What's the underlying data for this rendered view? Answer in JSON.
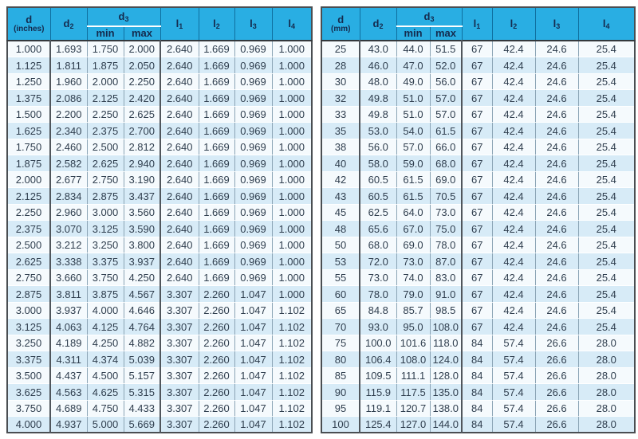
{
  "colors": {
    "header_bg": "#29aee3",
    "header_text": "#152b4e",
    "header_grid": "#0f6f9f",
    "row_light": "#f5fafd",
    "row_blue": "#d7ebf7",
    "body_text": "#2f3e4e",
    "grid_thin": "#8ba4b5",
    "grid_thick": "#4a4e52"
  },
  "inches_table": {
    "headers": {
      "col1_main": "d",
      "col1_unit": "(inches)",
      "d2_base": "d",
      "d2_sub": "2",
      "d3_base": "d",
      "d3_sub": "3",
      "min": "min",
      "max": "max",
      "l1_base": "l",
      "l1_sub": "1",
      "l2_base": "l",
      "l2_sub": "2",
      "l3_base": "l",
      "l3_sub": "3",
      "l4_base": "l",
      "l4_sub": "4"
    },
    "rows": [
      [
        "1.000",
        "1.693",
        "1.750",
        "2.000",
        "2.640",
        "1.669",
        "0.969",
        "1.000"
      ],
      [
        "1.125",
        "1.811",
        "1.875",
        "2.050",
        "2.640",
        "1.669",
        "0.969",
        "1.000"
      ],
      [
        "1.250",
        "1.960",
        "2.000",
        "2.250",
        "2.640",
        "1.669",
        "0.969",
        "1.000"
      ],
      [
        "1.375",
        "2.086",
        "2.125",
        "2.420",
        "2.640",
        "1.669",
        "0.969",
        "1.000"
      ],
      [
        "1.500",
        "2.200",
        "2.250",
        "2.625",
        "2.640",
        "1.669",
        "0.969",
        "1.000"
      ],
      [
        "1.625",
        "2.340",
        "2.375",
        "2.700",
        "2.640",
        "1.669",
        "0.969",
        "1.000"
      ],
      [
        "1.750",
        "2.460",
        "2.500",
        "2.812",
        "2.640",
        "1.669",
        "0.969",
        "1.000"
      ],
      [
        "1.875",
        "2.582",
        "2.625",
        "2.940",
        "2.640",
        "1.669",
        "0.969",
        "1.000"
      ],
      [
        "2.000",
        "2.677",
        "2.750",
        "3.190",
        "2.640",
        "1.669",
        "0.969",
        "1.000"
      ],
      [
        "2.125",
        "2.834",
        "2.875",
        "3.437",
        "2.640",
        "1.669",
        "0.969",
        "1.000"
      ],
      [
        "2.250",
        "2.960",
        "3.000",
        "3.560",
        "2.640",
        "1.669",
        "0.969",
        "1.000"
      ],
      [
        "2.375",
        "3.070",
        "3.125",
        "3.590",
        "2.640",
        "1.669",
        "0.969",
        "1.000"
      ],
      [
        "2.500",
        "3.212",
        "3.250",
        "3.800",
        "2.640",
        "1.669",
        "0.969",
        "1.000"
      ],
      [
        "2.625",
        "3.338",
        "3.375",
        "3.937",
        "2.640",
        "1.669",
        "0.969",
        "1.000"
      ],
      [
        "2.750",
        "3.660",
        "3.750",
        "4.250",
        "2.640",
        "1.669",
        "0.969",
        "1.000"
      ],
      [
        "2.875",
        "3.811",
        "3.875",
        "4.567",
        "3.307",
        "2.260",
        "1.047",
        "1.000"
      ],
      [
        "3.000",
        "3.937",
        "4.000",
        "4.646",
        "3.307",
        "2.260",
        "1.047",
        "1.102"
      ],
      [
        "3.125",
        "4.063",
        "4.125",
        "4.764",
        "3.307",
        "2.260",
        "1.047",
        "1.102"
      ],
      [
        "3.250",
        "4.189",
        "4.250",
        "4.882",
        "3.307",
        "2.260",
        "1.047",
        "1.102"
      ],
      [
        "3.375",
        "4.311",
        "4.374",
        "5.039",
        "3.307",
        "2.260",
        "1.047",
        "1.102"
      ],
      [
        "3.500",
        "4.437",
        "4.500",
        "5.157",
        "3.307",
        "2.260",
        "1.047",
        "1.102"
      ],
      [
        "3.625",
        "4.563",
        "4.625",
        "5.315",
        "3.307",
        "2.260",
        "1.047",
        "1.102"
      ],
      [
        "3.750",
        "4.689",
        "4.750",
        "4.433",
        "3.307",
        "2.260",
        "1.047",
        "1.102"
      ],
      [
        "4.000",
        "4.937",
        "5.000",
        "5.669",
        "3.307",
        "2.260",
        "1.047",
        "1.102"
      ]
    ]
  },
  "mm_table": {
    "headers": {
      "col1_main": "d",
      "col1_unit": "(mm)",
      "d2_base": "d",
      "d2_sub": "2",
      "d3_base": "d",
      "d3_sub": "3",
      "min": "min",
      "max": "max",
      "l1_base": "l",
      "l1_sub": "1",
      "l2_base": "l",
      "l2_sub": "2",
      "l3_base": "l",
      "l3_sub": "3",
      "l4_base": "l",
      "l4_sub": "4"
    },
    "rows": [
      [
        "25",
        "43.0",
        "44.0",
        "51.5",
        "67",
        "42.4",
        "24.6",
        "25.4"
      ],
      [
        "28",
        "46.0",
        "47.0",
        "52.0",
        "67",
        "42.4",
        "24.6",
        "25.4"
      ],
      [
        "30",
        "48.0",
        "49.0",
        "56.0",
        "67",
        "42.4",
        "24.6",
        "25.4"
      ],
      [
        "32",
        "49.8",
        "51.0",
        "57.0",
        "67",
        "42.4",
        "24.6",
        "25.4"
      ],
      [
        "33",
        "49.8",
        "51.0",
        "57.0",
        "67",
        "42.4",
        "24.6",
        "25.4"
      ],
      [
        "35",
        "53.0",
        "54.0",
        "61.5",
        "67",
        "42.4",
        "24.6",
        "25.4"
      ],
      [
        "38",
        "56.0",
        "57.0",
        "66.0",
        "67",
        "42.4",
        "24.6",
        "25.4"
      ],
      [
        "40",
        "58.0",
        "59.0",
        "68.0",
        "67",
        "42.4",
        "24.6",
        "25.4"
      ],
      [
        "42",
        "60.5",
        "61.5",
        "69.0",
        "67",
        "42.4",
        "24.6",
        "25.4"
      ],
      [
        "43",
        "60.5",
        "61.5",
        "70.5",
        "67",
        "42.4",
        "24.6",
        "25.4"
      ],
      [
        "45",
        "62.5",
        "64.0",
        "73.0",
        "67",
        "42.4",
        "24.6",
        "25.4"
      ],
      [
        "48",
        "65.6",
        "67.0",
        "75.0",
        "67",
        "42.4",
        "24.6",
        "25.4"
      ],
      [
        "50",
        "68.0",
        "69.0",
        "78.0",
        "67",
        "42.4",
        "24.6",
        "25.4"
      ],
      [
        "53",
        "72.0",
        "73.0",
        "87.0",
        "67",
        "42.4",
        "24.6",
        "25.4"
      ],
      [
        "55",
        "73.0",
        "74.0",
        "83.0",
        "67",
        "42.4",
        "24.6",
        "25.4"
      ],
      [
        "60",
        "78.0",
        "79.0",
        "91.0",
        "67",
        "42.4",
        "24.6",
        "25.4"
      ],
      [
        "65",
        "84.8",
        "85.7",
        "98.5",
        "67",
        "42.4",
        "24.6",
        "25.4"
      ],
      [
        "70",
        "93.0",
        "95.0",
        "108.0",
        "67",
        "42.4",
        "24.6",
        "25.4"
      ],
      [
        "75",
        "100.0",
        "101.6",
        "118.0",
        "84",
        "57.4",
        "26.6",
        "28.0"
      ],
      [
        "80",
        "106.4",
        "108.0",
        "124.0",
        "84",
        "57.4",
        "26.6",
        "28.0"
      ],
      [
        "85",
        "109.5",
        "111.1",
        "128.0",
        "84",
        "57.4",
        "26.6",
        "28.0"
      ],
      [
        "90",
        "115.9",
        "117.5",
        "135.0",
        "84",
        "57.4",
        "26.6",
        "28.0"
      ],
      [
        "95",
        "119.1",
        "120.7",
        "138.0",
        "84",
        "57.4",
        "26.6",
        "28.0"
      ],
      [
        "100",
        "125.4",
        "127.0",
        "144.0",
        "84",
        "57.4",
        "26.6",
        "28.0"
      ]
    ]
  }
}
